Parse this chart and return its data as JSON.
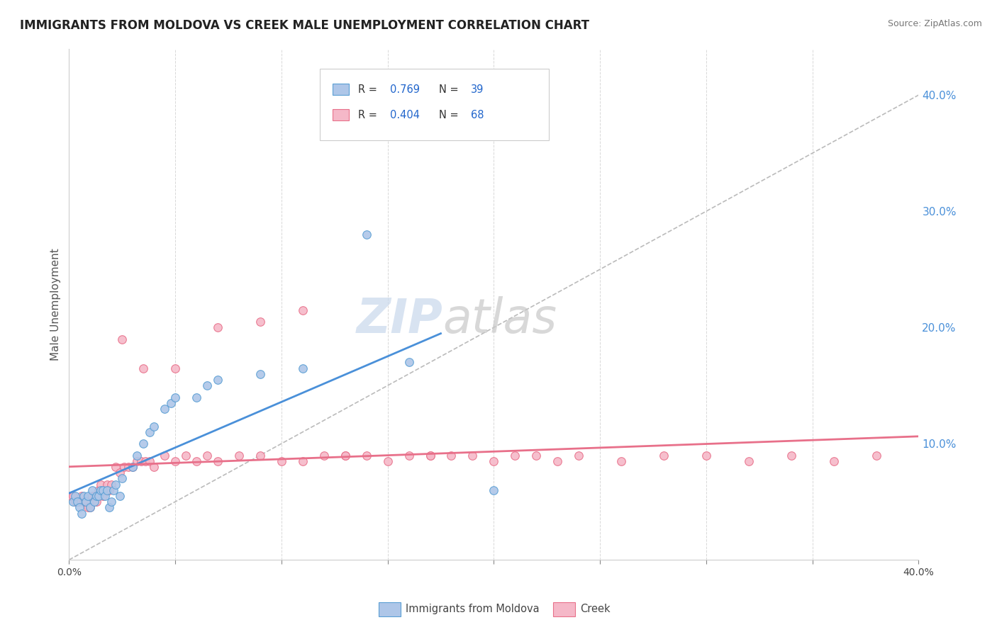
{
  "title": "IMMIGRANTS FROM MOLDOVA VS CREEK MALE UNEMPLOYMENT CORRELATION CHART",
  "source": "Source: ZipAtlas.com",
  "ylabel": "Male Unemployment",
  "legend_label1": "Immigrants from Moldova",
  "legend_label2": "Creek",
  "legend_r1": "0.769",
  "legend_n1": "39",
  "legend_r2": "0.404",
  "legend_n2": "68",
  "right_ytick_vals": [
    0.1,
    0.2,
    0.3,
    0.4
  ],
  "color_moldova_fill": "#aec6e8",
  "color_moldova_edge": "#5a9fd4",
  "color_creek_fill": "#f5b8c8",
  "color_creek_edge": "#e8708a",
  "color_moldova_line": "#4a90d9",
  "color_creek_line": "#e8708a",
  "color_diag": "#bbbbbb",
  "color_grid": "#d8d8d8",
  "color_watermark_zip": "#c8d8ec",
  "color_watermark_atlas": "#c8c8c8",
  "bg_color": "#ffffff",
  "moldova_x": [
    0.002,
    0.003,
    0.004,
    0.005,
    0.006,
    0.007,
    0.008,
    0.009,
    0.01,
    0.011,
    0.012,
    0.013,
    0.014,
    0.015,
    0.016,
    0.017,
    0.018,
    0.019,
    0.02,
    0.021,
    0.022,
    0.024,
    0.025,
    0.03,
    0.032,
    0.035,
    0.038,
    0.04,
    0.045,
    0.048,
    0.05,
    0.06,
    0.065,
    0.07,
    0.09,
    0.11,
    0.14,
    0.16,
    0.2
  ],
  "moldova_y": [
    0.05,
    0.055,
    0.05,
    0.045,
    0.04,
    0.055,
    0.05,
    0.055,
    0.045,
    0.06,
    0.05,
    0.055,
    0.055,
    0.06,
    0.06,
    0.055,
    0.06,
    0.045,
    0.05,
    0.06,
    0.065,
    0.055,
    0.07,
    0.08,
    0.09,
    0.1,
    0.11,
    0.115,
    0.13,
    0.135,
    0.14,
    0.14,
    0.15,
    0.155,
    0.16,
    0.165,
    0.28,
    0.17,
    0.06
  ],
  "creek_x": [
    0.001,
    0.002,
    0.003,
    0.004,
    0.005,
    0.006,
    0.007,
    0.008,
    0.009,
    0.01,
    0.011,
    0.012,
    0.013,
    0.014,
    0.015,
    0.016,
    0.017,
    0.018,
    0.019,
    0.02,
    0.022,
    0.024,
    0.026,
    0.028,
    0.03,
    0.032,
    0.034,
    0.036,
    0.038,
    0.04,
    0.045,
    0.05,
    0.055,
    0.06,
    0.065,
    0.07,
    0.08,
    0.09,
    0.1,
    0.11,
    0.12,
    0.13,
    0.14,
    0.15,
    0.16,
    0.17,
    0.18,
    0.19,
    0.2,
    0.21,
    0.22,
    0.23,
    0.24,
    0.26,
    0.28,
    0.3,
    0.32,
    0.34,
    0.36,
    0.38,
    0.025,
    0.035,
    0.05,
    0.07,
    0.09,
    0.11,
    0.13,
    0.17
  ],
  "creek_y": [
    0.055,
    0.055,
    0.05,
    0.05,
    0.05,
    0.055,
    0.05,
    0.05,
    0.045,
    0.045,
    0.055,
    0.055,
    0.05,
    0.06,
    0.065,
    0.055,
    0.06,
    0.065,
    0.06,
    0.065,
    0.08,
    0.075,
    0.08,
    0.08,
    0.08,
    0.085,
    0.085,
    0.085,
    0.085,
    0.08,
    0.09,
    0.085,
    0.09,
    0.085,
    0.09,
    0.085,
    0.09,
    0.09,
    0.085,
    0.085,
    0.09,
    0.09,
    0.09,
    0.085,
    0.09,
    0.09,
    0.09,
    0.09,
    0.085,
    0.09,
    0.09,
    0.085,
    0.09,
    0.085,
    0.09,
    0.09,
    0.085,
    0.09,
    0.085,
    0.09,
    0.19,
    0.165,
    0.165,
    0.2,
    0.205,
    0.215,
    0.09,
    0.09
  ],
  "xlim": [
    0.0,
    0.4
  ],
  "ylim": [
    0.0,
    0.44
  ]
}
